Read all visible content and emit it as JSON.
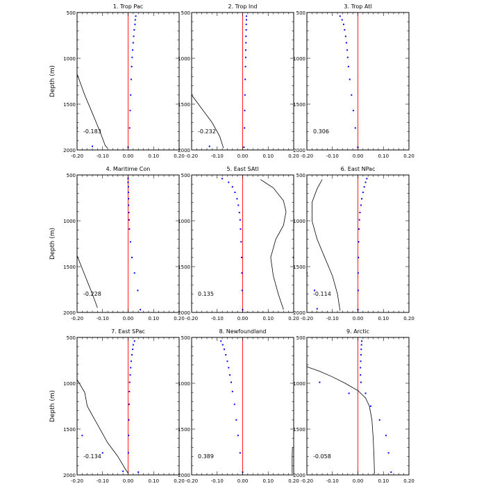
{
  "chart_data": [
    {
      "type": "scatter",
      "title": "1. Trop Pac",
      "ylabel": "Depth (m)",
      "xlim": [
        -0.2,
        0.2
      ],
      "ylim": [
        2000,
        500
      ],
      "correlation": "-0.183",
      "zero_line_color": "#ff0000",
      "dot_color": "#0000ff",
      "line_color": "#000000",
      "points": [
        [
          0.03,
          540
        ],
        [
          0.028,
          580
        ],
        [
          0.027,
          630
        ],
        [
          0.024,
          690
        ],
        [
          0.022,
          760
        ],
        [
          0.02,
          830
        ],
        [
          0.018,
          910
        ],
        [
          0.016,
          990
        ],
        [
          0.014,
          1090
        ],
        [
          0.012,
          1230
        ],
        [
          0.01,
          1400
        ],
        [
          0.008,
          1570
        ],
        [
          0.006,
          1760
        ],
        [
          0.0,
          1970
        ],
        [
          -0.14,
          1960
        ],
        [
          -0.2,
          1760
        ]
      ],
      "line": [
        [
          -0.2,
          1170
        ],
        [
          -0.17,
          1400
        ],
        [
          -0.14,
          1600
        ],
        [
          -0.11,
          1800
        ],
        [
          -0.09,
          1950
        ],
        [
          -0.08,
          1980
        ]
      ]
    },
    {
      "type": "scatter",
      "title": "2. Trop Ind",
      "ylabel": "",
      "xlim": [
        -0.2,
        0.2
      ],
      "ylim": [
        2000,
        500
      ],
      "correlation": "-0.232",
      "zero_line_color": "#ff0000",
      "dot_color": "#0000ff",
      "line_color": "#000000",
      "points": [
        [
          0.015,
          540
        ],
        [
          0.015,
          580
        ],
        [
          0.014,
          630
        ],
        [
          0.014,
          690
        ],
        [
          0.013,
          760
        ],
        [
          0.013,
          830
        ],
        [
          0.012,
          910
        ],
        [
          0.012,
          990
        ],
        [
          0.011,
          1090
        ],
        [
          0.01,
          1230
        ],
        [
          0.009,
          1400
        ],
        [
          0.008,
          1570
        ],
        [
          0.007,
          1760
        ],
        [
          0.005,
          1970
        ],
        [
          -0.13,
          1960
        ]
      ],
      "line": [
        [
          -0.2,
          1400
        ],
        [
          -0.16,
          1550
        ],
        [
          -0.12,
          1700
        ],
        [
          -0.09,
          1850
        ],
        [
          -0.075,
          1980
        ]
      ]
    },
    {
      "type": "scatter",
      "title": "3. Trop Atl",
      "ylabel": "",
      "xlim": [
        -0.2,
        0.2
      ],
      "ylim": [
        2000,
        500
      ],
      "correlation": "0.306",
      "zero_line_color": "#ff0000",
      "dot_color": "#0000ff",
      "line_color": "#000000",
      "points": [
        [
          -0.07,
          540
        ],
        [
          -0.062,
          580
        ],
        [
          -0.056,
          630
        ],
        [
          -0.052,
          690
        ],
        [
          -0.048,
          760
        ],
        [
          -0.045,
          830
        ],
        [
          -0.042,
          910
        ],
        [
          -0.04,
          990
        ],
        [
          -0.037,
          1090
        ],
        [
          -0.032,
          1230
        ],
        [
          -0.025,
          1400
        ],
        [
          -0.018,
          1570
        ],
        [
          -0.01,
          1760
        ],
        [
          0.0,
          1970
        ]
      ],
      "line": []
    },
    {
      "type": "scatter",
      "title": "4. Maritime Con",
      "ylabel": "Depth (m)",
      "xlim": [
        -0.2,
        0.2
      ],
      "ylim": [
        2000,
        500
      ],
      "correlation": "-0.228",
      "zero_line_color": "#ff0000",
      "dot_color": "#0000ff",
      "line_color": "#000000",
      "points": [
        [
          0.0,
          540
        ],
        [
          0.0,
          580
        ],
        [
          0.001,
          630
        ],
        [
          0.001,
          690
        ],
        [
          0.002,
          760
        ],
        [
          0.002,
          830
        ],
        [
          0.003,
          910
        ],
        [
          0.004,
          990
        ],
        [
          0.005,
          1090
        ],
        [
          0.009,
          1230
        ],
        [
          0.015,
          1400
        ],
        [
          0.025,
          1570
        ],
        [
          0.038,
          1760
        ],
        [
          0.048,
          1970
        ]
      ],
      "line": [
        [
          -0.2,
          1380
        ],
        [
          -0.17,
          1590
        ],
        [
          -0.14,
          1800
        ],
        [
          -0.12,
          1950
        ]
      ]
    },
    {
      "type": "scatter",
      "title": "5. East SAtl",
      "ylabel": "",
      "xlim": [
        -0.2,
        0.2
      ],
      "ylim": [
        2000,
        500
      ],
      "correlation": "0.135",
      "zero_line_color": "#ff0000",
      "dot_color": "#0000ff",
      "line_color": "#000000",
      "points": [
        [
          -0.08,
          540
        ],
        [
          -0.055,
          580
        ],
        [
          -0.04,
          630
        ],
        [
          -0.03,
          690
        ],
        [
          -0.022,
          760
        ],
        [
          -0.017,
          830
        ],
        [
          -0.013,
          910
        ],
        [
          -0.01,
          990
        ],
        [
          -0.008,
          1090
        ],
        [
          -0.006,
          1230
        ],
        [
          -0.004,
          1400
        ],
        [
          -0.003,
          1570
        ],
        [
          -0.002,
          1760
        ],
        [
          0.0,
          1970
        ],
        [
          0.2,
          1400
        ]
      ],
      "line": [
        [
          0.07,
          550
        ],
        [
          0.12,
          640
        ],
        [
          0.16,
          780
        ],
        [
          0.17,
          900
        ],
        [
          0.16,
          1050
        ],
        [
          0.13,
          1200
        ],
        [
          0.11,
          1400
        ],
        [
          0.12,
          1600
        ],
        [
          0.14,
          1800
        ],
        [
          0.16,
          1970
        ]
      ]
    },
    {
      "type": "scatter",
      "title": "6. East NPac",
      "ylabel": "",
      "xlim": [
        -0.2,
        0.2
      ],
      "ylim": [
        2000,
        500
      ],
      "correlation": "-0.114",
      "zero_line_color": "#ff0000",
      "dot_color": "#0000ff",
      "line_color": "#000000",
      "points": [
        [
          0.035,
          540
        ],
        [
          0.03,
          580
        ],
        [
          0.025,
          630
        ],
        [
          0.02,
          690
        ],
        [
          0.015,
          760
        ],
        [
          0.012,
          830
        ],
        [
          0.008,
          910
        ],
        [
          0.006,
          990
        ],
        [
          0.004,
          1090
        ],
        [
          0.003,
          1230
        ],
        [
          0.002,
          1400
        ],
        [
          0.001,
          1570
        ],
        [
          0.001,
          1760
        ],
        [
          0.0,
          1970
        ],
        [
          -0.16,
          1960
        ],
        [
          -0.17,
          1760
        ],
        [
          -0.2,
          1570
        ]
      ],
      "line": [
        [
          -0.14,
          550
        ],
        [
          -0.16,
          650
        ],
        [
          -0.18,
          800
        ],
        [
          -0.18,
          1000
        ],
        [
          -0.16,
          1200
        ],
        [
          -0.13,
          1400
        ],
        [
          -0.1,
          1600
        ],
        [
          -0.08,
          1800
        ],
        [
          -0.07,
          1980
        ]
      ]
    },
    {
      "type": "scatter",
      "title": "7. East SPac",
      "ylabel": "Depth (m)",
      "xlim": [
        -0.2,
        0.2
      ],
      "ylim": [
        2000,
        500
      ],
      "correlation": "-0.134",
      "zero_line_color": "#ff0000",
      "dot_color": "#0000ff",
      "line_color": "#000000",
      "points": [
        [
          0.025,
          540
        ],
        [
          0.02,
          580
        ],
        [
          0.018,
          630
        ],
        [
          0.015,
          690
        ],
        [
          0.012,
          760
        ],
        [
          0.01,
          830
        ],
        [
          0.008,
          910
        ],
        [
          0.006,
          990
        ],
        [
          0.005,
          1090
        ],
        [
          0.004,
          1230
        ],
        [
          0.003,
          1400
        ],
        [
          0.002,
          1570
        ],
        [
          0.001,
          1760
        ],
        [
          0.04,
          1970
        ],
        [
          -0.02,
          1960
        ],
        [
          -0.1,
          1760
        ],
        [
          -0.18,
          1570
        ]
      ],
      "line": [
        [
          -0.2,
          960
        ],
        [
          -0.17,
          1100
        ],
        [
          -0.16,
          1250
        ],
        [
          -0.12,
          1450
        ],
        [
          -0.08,
          1650
        ],
        [
          -0.04,
          1800
        ],
        [
          -0.01,
          1940
        ],
        [
          0.0,
          1980
        ]
      ]
    },
    {
      "type": "scatter",
      "title": "8. Newfoundland",
      "ylabel": "",
      "xlim": [
        -0.2,
        0.2
      ],
      "ylim": [
        2000,
        500
      ],
      "correlation": "0.389",
      "zero_line_color": "#ff0000",
      "dot_color": "#0000ff",
      "line_color": "#000000",
      "points": [
        [
          -0.085,
          540
        ],
        [
          -0.078,
          580
        ],
        [
          -0.072,
          630
        ],
        [
          -0.066,
          690
        ],
        [
          -0.06,
          760
        ],
        [
          -0.055,
          830
        ],
        [
          -0.05,
          910
        ],
        [
          -0.045,
          990
        ],
        [
          -0.04,
          1090
        ],
        [
          -0.032,
          1230
        ],
        [
          -0.025,
          1400
        ],
        [
          -0.018,
          1570
        ],
        [
          -0.01,
          1760
        ],
        [
          0.0,
          1970
        ]
      ],
      "line": [
        [
          0.195,
          1700
        ],
        [
          0.194,
          1800
        ],
        [
          0.194,
          1990
        ]
      ]
    },
    {
      "type": "scatter",
      "title": "9. Arctic",
      "ylabel": "",
      "xlim": [
        -0.2,
        0.2
      ],
      "ylim": [
        2000,
        500
      ],
      "correlation": "-0.058",
      "zero_line_color": "#ff0000",
      "dot_color": "#0000ff",
      "line_color": "#000000",
      "points": [
        [
          0.015,
          540
        ],
        [
          0.014,
          580
        ],
        [
          0.013,
          630
        ],
        [
          0.012,
          690
        ],
        [
          0.011,
          760
        ],
        [
          0.01,
          830
        ],
        [
          0.01,
          910
        ],
        [
          0.012,
          990
        ],
        [
          -0.15,
          990
        ],
        [
          -0.035,
          1110
        ],
        [
          0.03,
          1110
        ],
        [
          0.05,
          1250
        ],
        [
          0.085,
          1400
        ],
        [
          0.11,
          1570
        ],
        [
          0.12,
          1760
        ],
        [
          0.13,
          1970
        ]
      ],
      "line": [
        [
          -0.2,
          820
        ],
        [
          -0.15,
          870
        ],
        [
          -0.1,
          930
        ],
        [
          -0.05,
          1000
        ],
        [
          0.0,
          1080
        ],
        [
          0.03,
          1160
        ],
        [
          0.045,
          1250
        ],
        [
          0.055,
          1400
        ],
        [
          0.06,
          1600
        ],
        [
          0.063,
          1800
        ],
        [
          0.065,
          1990
        ]
      ]
    }
  ],
  "x_ticks": [
    -0.2,
    -0.1,
    0.0,
    0.1,
    0.2
  ],
  "x_tick_labels": [
    "-0.20",
    "-0.10",
    "0.00",
    "0.10",
    "0.20"
  ],
  "y_ticks": [
    500,
    1000,
    1500,
    2000
  ],
  "y_tick_labels": [
    "500",
    "1000",
    "1500",
    "2000"
  ]
}
